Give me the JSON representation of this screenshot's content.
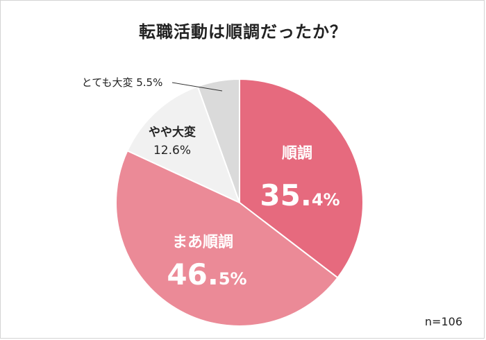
{
  "chart_data": {
    "type": "pie",
    "title": "転職活動は順調だったか？",
    "note": "n=106",
    "slices": [
      {
        "label": "順調",
        "value": 35.4,
        "big": "35.",
        "small": "4%",
        "color": "#e66a7e",
        "text_color": "#ffffff"
      },
      {
        "label": "まあ順調",
        "value": 46.5,
        "big": "46.",
        "small": "5%",
        "color": "#eb8a97",
        "text_color": "#ffffff"
      },
      {
        "label": "やや大変",
        "value": 12.6,
        "display": "12.6%",
        "color": "#f1f1f1",
        "text_color": "#222222"
      },
      {
        "label": "とても大変",
        "value": 5.5,
        "display": "5.5%",
        "color": "#dadada",
        "text_color": "#222222"
      }
    ]
  }
}
